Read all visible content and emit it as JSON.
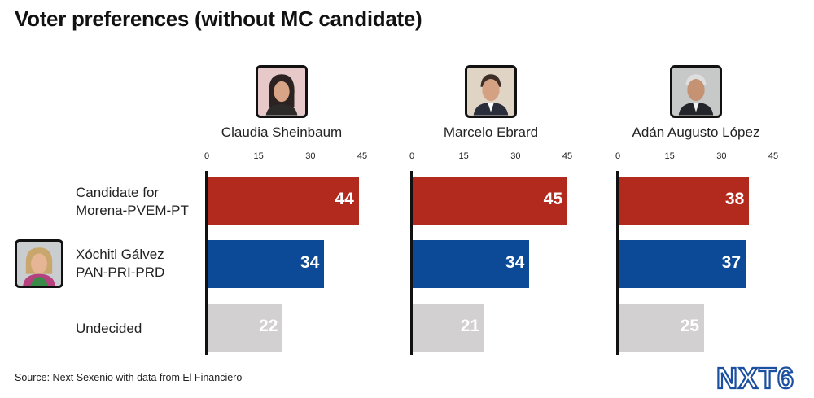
{
  "title": "Voter preferences (without MC candidate)",
  "source": "Source: Next Sexenio with data from El Financiero",
  "logo_text": "NXT6",
  "row_labels": [
    [
      "Candidate for",
      "Morena-PVEM-PT"
    ],
    [
      "Xóchitl Gálvez",
      "PAN-PRI-PRD"
    ],
    [
      "Undecided"
    ]
  ],
  "colors": {
    "morena": "#b22a1e",
    "pan": "#0c4a97",
    "undecided": "#d2d0d0",
    "axis": "#111111",
    "logo": "#1b4fa0"
  },
  "chart_data": [
    {
      "type": "bar",
      "title": "Claudia Sheinbaum",
      "categories": [
        "Candidate for Morena-PVEM-PT",
        "Xóchitl Gálvez PAN-PRI-PRD",
        "Undecided"
      ],
      "values": [
        44,
        34,
        22
      ],
      "xlim": [
        0,
        45
      ],
      "ticks": [
        "0",
        "15",
        "30",
        "45"
      ]
    },
    {
      "type": "bar",
      "title": "Marcelo Ebrard",
      "categories": [
        "Candidate for Morena-PVEM-PT",
        "Xóchitl Gálvez PAN-PRI-PRD",
        "Undecided"
      ],
      "values": [
        45,
        34,
        21
      ],
      "xlim": [
        0,
        45
      ],
      "ticks": [
        "0",
        "15",
        "30",
        "45"
      ]
    },
    {
      "type": "bar",
      "title": "Adán Augusto López",
      "categories": [
        "Candidate for Morena-PVEM-PT",
        "Xóchitl Gálvez PAN-PRI-PRD",
        "Undecided"
      ],
      "values": [
        38,
        37,
        25
      ],
      "xlim": [
        0,
        45
      ],
      "ticks": [
        "0",
        "15",
        "30",
        "45"
      ]
    }
  ]
}
